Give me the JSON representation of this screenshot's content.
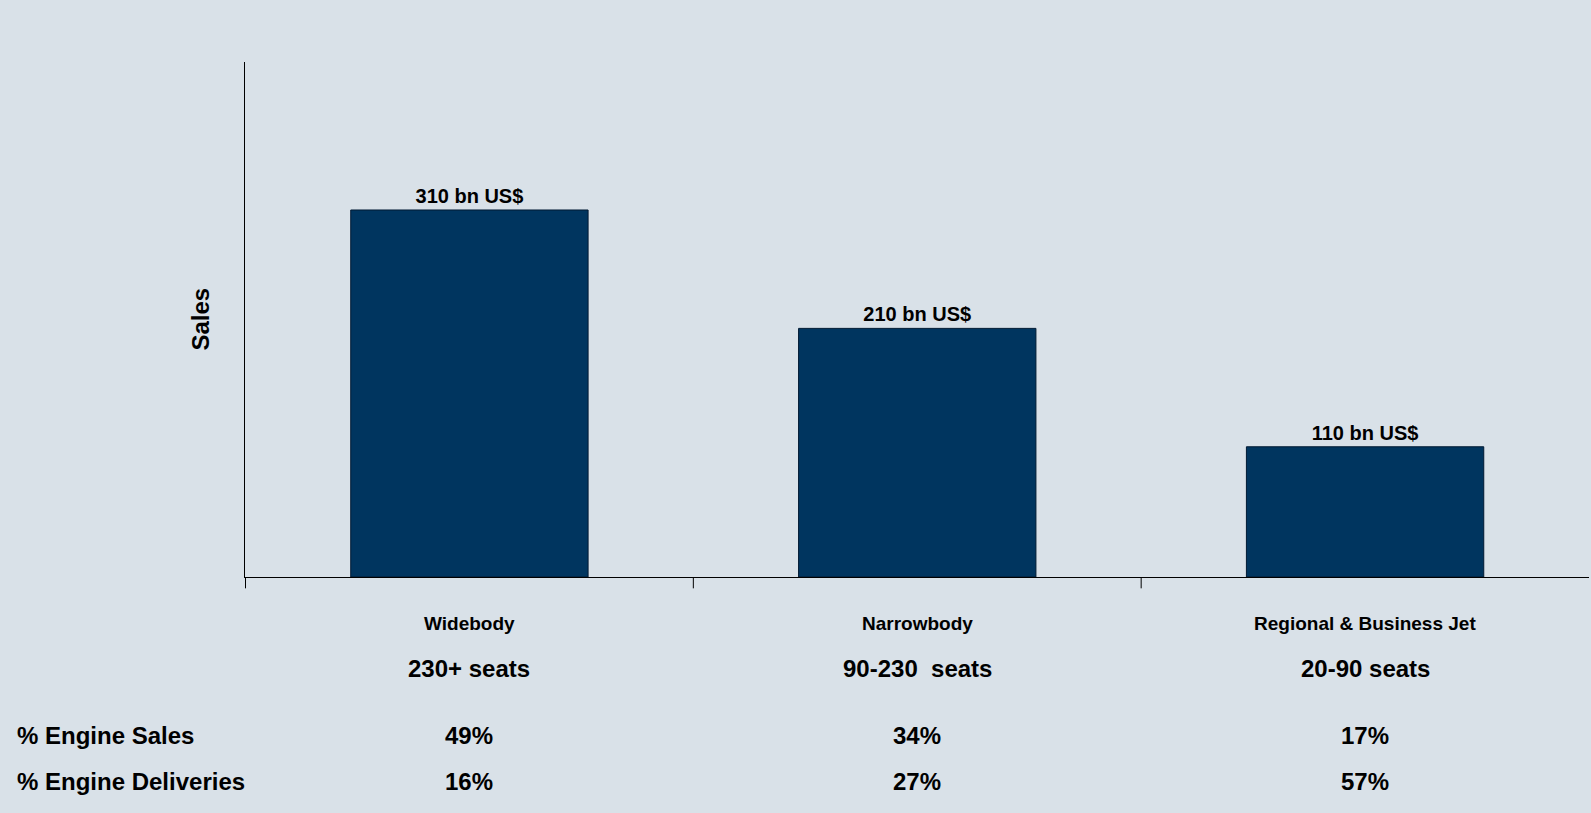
{
  "chart_data": {
    "type": "bar",
    "y_label": "Sales",
    "categories": [
      "Widebody",
      "Narrowbody",
      "Regional & Business Jet"
    ],
    "category_subtitles": [
      "230+ seats",
      "90-230  seats",
      "20-90 seats"
    ],
    "values": [
      310,
      210,
      110
    ],
    "value_labels": [
      "310 bn US$",
      "210 bn US$",
      "110 bn US$"
    ],
    "data_labels": true,
    "color": "#00355f",
    "ylim": [
      0,
      435
    ],
    "yticks": [],
    "grid": false,
    "tick_labels": "x",
    "rows": [
      {
        "label": "% Engine Sales",
        "values": [
          49,
          34,
          17
        ],
        "value_labels": [
          "49%",
          "34%",
          "17%"
        ]
      },
      {
        "label": "% Engine Deliveries",
        "values": [
          16,
          27,
          57
        ],
        "value_labels": [
          "16%",
          "27%",
          "57%"
        ]
      }
    ]
  }
}
